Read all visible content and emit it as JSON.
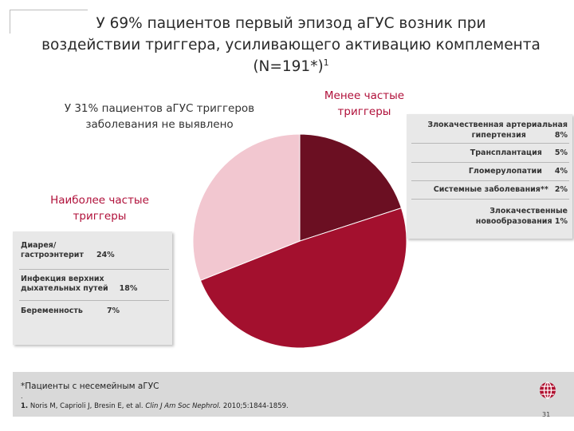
{
  "slide": {
    "title_line1": "У 69% пациентов первый  эпизод аГУС возник при",
    "title_line2": "воздействии триггера, усиливающего  активацию комплемента",
    "title_line3": "(N=191*)",
    "title_sup": "1"
  },
  "labels": {
    "less_frequent_1": "Менее  частые",
    "less_frequent_2": "триггеры",
    "no_trigger_1": "У 31% пациентов аГУС триггеров",
    "no_trigger_2": "заболевания не выявлено",
    "most_frequent_1": "Наиболее частые",
    "most_frequent_2": "триггеры"
  },
  "left_box": {
    "items": [
      {
        "line1": "Диарея/",
        "line2": "гастроэнтерит",
        "value": "24%"
      },
      {
        "line1": "Инфекция верхних",
        "line2": "дыхательных путей",
        "value": "18%"
      },
      {
        "line1": "Беременность",
        "value": "7%"
      }
    ]
  },
  "right_box": {
    "items": [
      {
        "line1": "Злокачественная артериальная",
        "line2": "гипертензия",
        "value": "8%"
      },
      {
        "line1": "Трансплантация",
        "value": "5%"
      },
      {
        "line1": "Гломерулопатии",
        "value": "4%"
      },
      {
        "line1": "Системные заболевания**",
        "value": "2%"
      },
      {
        "line1": "Злокачественные",
        "line2": "новообразования",
        "value": "1%"
      }
    ]
  },
  "chart_data": {
    "type": "pie",
    "slices": [
      {
        "label": "Менее  частые триггеры",
        "value": 20,
        "color": "#6b0f22"
      },
      {
        "label": "Наиболее частые триггеры",
        "value": 49,
        "color": "#a3102e"
      },
      {
        "label": "У 31% пациентов аГУС триггеров заболевания не выявлено",
        "value": 31,
        "color": "#f2c7d0"
      }
    ]
  },
  "footer": {
    "note": "*Пациенты с несемейным аГУС",
    "dot": ".",
    "ref_num": "1.",
    "ref_authors": "Noris M, Caprioli J, Bresin E, et al.",
    "ref_journal": "Clin J Am Soc Nephrol.",
    "ref_rest": "2010;5:1844-1859.",
    "page": "31"
  }
}
